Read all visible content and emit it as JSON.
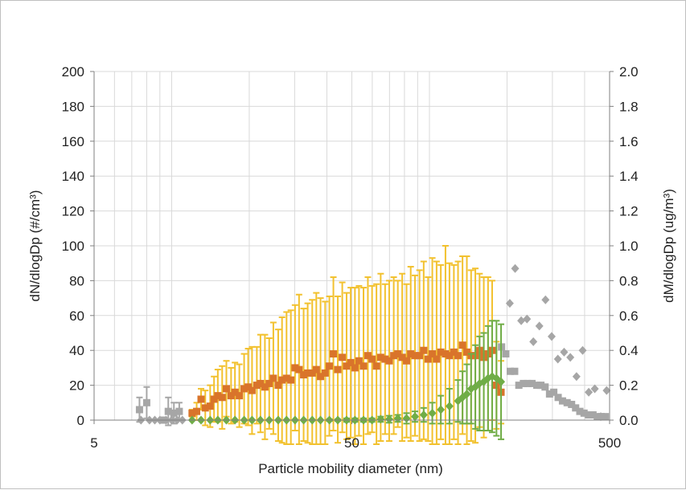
{
  "chart_data": {
    "type": "scatter",
    "xlabel": "Particle mobility diameter (nm)",
    "ylabel_left": "dN/dlogDp (#/cm³)",
    "ylabel_right": "dM/dlogDp (ug/m³)",
    "x_scale": "log",
    "xlim": [
      5,
      500
    ],
    "x_ticks": [
      "5",
      "50",
      "500"
    ],
    "ylim_left": [
      0,
      200
    ],
    "ylim_right": [
      0,
      2.0
    ],
    "y_ticks_left": [
      "0",
      "20",
      "40",
      "60",
      "80",
      "100",
      "120",
      "140",
      "160",
      "180",
      "200"
    ],
    "y_ticks_right": [
      "0.0",
      "0.2",
      "0.4",
      "0.6",
      "0.8",
      "1.0",
      "1.2",
      "1.4",
      "1.6",
      "1.8",
      "2.0"
    ],
    "grid": true,
    "colors": {
      "number_error": "#f2c12e",
      "number_points": "#d9742b",
      "mass_points": "#70ad47",
      "mass_error": "#70ad47",
      "out_of_range": "#a6a6a6",
      "grid": "#d9d9d9",
      "axis": "#808080"
    },
    "series": [
      {
        "role": "number-concentration",
        "axis": "left",
        "marker": "square",
        "x": [
          12.0,
          12.5,
          13.0,
          13.5,
          14.1,
          14.6,
          15.1,
          15.7,
          16.3,
          17.0,
          17.6,
          18.3,
          19.1,
          19.8,
          20.5,
          21.4,
          22.1,
          23.0,
          23.9,
          24.8,
          25.9,
          26.8,
          27.9,
          29.0,
          30.1,
          31.2,
          32.5,
          33.7,
          35.1,
          36.4,
          37.8,
          39.4,
          40.9,
          42.4,
          44.1,
          45.9,
          47.7,
          49.5,
          51.4,
          53.3,
          55.5,
          57.7,
          59.9,
          62.3,
          64.7,
          67.3,
          69.8,
          72.7,
          75.4,
          78.4,
          81.5,
          84.6,
          87.9,
          91.5,
          95.0,
          98.8,
          102.6,
          106.6,
          110.7,
          115.4,
          119.6,
          124.4,
          129.1,
          134.4,
          139.7,
          145.1,
          150.7,
          156.5,
          162.5,
          168.8,
          175.1,
          182.0,
          189.6
        ],
        "y": [
          4,
          5,
          12,
          7,
          8,
          12,
          14,
          13,
          18,
          14,
          16,
          14,
          18,
          19,
          17,
          20,
          21,
          19,
          21,
          24,
          20,
          23,
          24,
          23,
          30,
          29,
          26,
          27,
          27,
          29,
          25,
          27,
          31,
          38,
          29,
          36,
          31,
          33,
          30,
          34,
          31,
          37,
          35,
          31,
          36,
          35,
          34,
          37,
          38,
          36,
          34,
          38,
          37,
          37,
          40,
          35,
          38,
          35,
          39,
          38,
          37,
          39,
          37,
          43,
          39,
          37,
          37,
          40,
          36,
          38,
          40,
          20,
          16
        ],
        "err": [
          2,
          5,
          6,
          10,
          12,
          13,
          15,
          18,
          16,
          16,
          17,
          18,
          20,
          22,
          25,
          22,
          28,
          30,
          26,
          32,
          32,
          36,
          38,
          40,
          36,
          43,
          38,
          40,
          42,
          44,
          45,
          41,
          40,
          44,
          42,
          43,
          42,
          43,
          46,
          43,
          45,
          45,
          42,
          47,
          48,
          43,
          46,
          45,
          42,
          48,
          44,
          50,
          46,
          49,
          51,
          47,
          55,
          56,
          50,
          62,
          53,
          50,
          54,
          51,
          55,
          49,
          50,
          44,
          46,
          44,
          40,
          25,
          18
        ]
      },
      {
        "role": "mass-concentration",
        "axis": "right",
        "marker": "diamond",
        "x": [
          12.0,
          13.0,
          14.1,
          15.1,
          16.3,
          17.6,
          19.1,
          20.5,
          22.1,
          23.9,
          25.9,
          27.9,
          30.1,
          32.5,
          35.1,
          37.8,
          40.9,
          44.1,
          47.7,
          51.4,
          55.5,
          59.9,
          64.7,
          69.8,
          75.4,
          81.5,
          87.9,
          95.0,
          102.6,
          110.7,
          119.6,
          129.1,
          134.4,
          139.7,
          145.1,
          150.7,
          156.5,
          162.5,
          168.8,
          175.1,
          182.0,
          189.6
        ],
        "y": [
          0.0,
          0.0,
          0.0,
          0.0,
          0.0,
          0.0,
          0.0,
          0.0,
          0.0,
          0.0,
          0.0,
          0.0,
          0.0,
          0.0,
          0.0,
          0.0,
          0.0,
          0.0,
          0.0,
          0.0,
          0.0,
          0.0,
          0.005,
          0.005,
          0.01,
          0.01,
          0.02,
          0.03,
          0.04,
          0.06,
          0.08,
          0.11,
          0.13,
          0.15,
          0.18,
          0.19,
          0.21,
          0.22,
          0.24,
          0.25,
          0.24,
          0.22
        ],
        "err": [
          0.0,
          0.0,
          0.0,
          0.0,
          0.0,
          0.0,
          0.0,
          0.0,
          0.0,
          0.0,
          0.0,
          0.0,
          0.0,
          0.0,
          0.0,
          0.0,
          0.005,
          0.005,
          0.01,
          0.01,
          0.01,
          0.01,
          0.015,
          0.02,
          0.02,
          0.03,
          0.03,
          0.04,
          0.06,
          0.08,
          0.1,
          0.12,
          0.15,
          0.17,
          0.2,
          0.24,
          0.27,
          0.28,
          0.3,
          0.32,
          0.33,
          0.33
        ]
      },
      {
        "role": "number-out-of-range",
        "axis": "left",
        "marker": "square",
        "x": [
          7.5,
          8.0,
          9.3,
          9.7,
          10.2,
          10.7,
          190.5,
          197.8,
          205.9,
          214.1,
          222.3,
          231.5,
          240.5,
          250.0,
          261.0,
          270.7,
          281.0,
          292.4,
          303.7,
          315.8,
          328.3,
          342.2,
          356.0,
          369.1,
          383.3,
          398.0,
          414.2,
          431.0,
          447.9,
          463.8,
          481.2
        ],
        "y": [
          6,
          10,
          0,
          5,
          4,
          5,
          42,
          38,
          28,
          28,
          20,
          21,
          21,
          21,
          20,
          20,
          19,
          15,
          16,
          13,
          11,
          10,
          9,
          7,
          5,
          4,
          3,
          3,
          2,
          2,
          2
        ],
        "err": [
          7,
          9,
          0,
          8,
          6,
          5,
          0,
          0,
          0,
          0,
          0,
          0,
          0,
          0,
          0,
          0,
          0,
          0,
          0,
          0,
          0,
          0,
          0,
          0,
          0,
          0,
          0,
          0,
          0,
          0,
          0
        ]
      },
      {
        "role": "mass-out-of-range",
        "axis": "right",
        "marker": "diamond",
        "x": [
          7.6,
          8.2,
          8.6,
          9.0,
          9.5,
          10.0,
          10.5,
          11.0,
          205.0,
          215.0,
          227.0,
          239.0,
          253.0,
          267.0,
          282.0,
          298.0,
          315.0,
          333.0,
          352.0,
          372.0,
          393.0,
          415.0,
          438.0,
          462.0,
          487.0
        ],
        "y": [
          0.0,
          0.0,
          0.0,
          0.0,
          0.0,
          0.0,
          0.0,
          0.0,
          0.67,
          0.87,
          0.57,
          0.58,
          0.45,
          0.54,
          0.69,
          0.48,
          0.35,
          0.39,
          0.36,
          0.25,
          0.4,
          0.16,
          0.18,
          0.02,
          0.17
        ],
        "err": [
          0,
          0,
          0,
          0,
          0,
          0,
          0,
          0,
          0,
          0,
          0,
          0,
          0,
          0,
          0,
          0,
          0,
          0,
          0,
          0,
          0,
          0,
          0,
          0,
          0
        ]
      }
    ]
  }
}
